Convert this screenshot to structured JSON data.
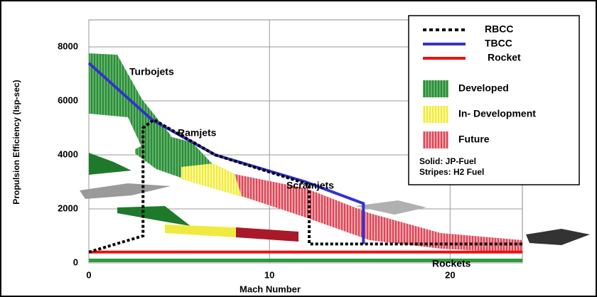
{
  "chart_data": {
    "type": "line",
    "xlabel": "Mach Number",
    "ylabel": "Propulsion Efficiency  (Isp-sec)",
    "xlim": [
      0,
      24
    ],
    "ylim": [
      0,
      9000
    ],
    "xticks": [
      0,
      10,
      20
    ],
    "yticks": [
      0,
      2000,
      4000,
      6000,
      8000
    ],
    "grid": true,
    "legend": "upper right",
    "series": [
      {
        "name": "RBCC",
        "color": "#000000",
        "dash": true,
        "x": [
          0,
          3,
          3,
          3.6,
          7,
          12.2,
          12.2,
          24
        ],
        "values": [
          400,
          1000,
          5000,
          5300,
          4000,
          2900,
          700,
          700
        ]
      },
      {
        "name": "TBCC",
        "color": "#3333cc",
        "dash": false,
        "x": [
          0,
          3.5,
          7,
          12,
          15.2,
          15.2
        ],
        "values": [
          7400,
          5300,
          4000,
          3000,
          2200,
          700
        ]
      },
      {
        "name": "Rocket",
        "color": "#ee1111",
        "dash": false,
        "x": [
          0,
          24
        ],
        "values": [
          400,
          400
        ]
      }
    ],
    "areas": [
      {
        "name": "Developed",
        "color": "#2e9a3e"
      },
      {
        "name": "In- Development",
        "color": "#f4f04a"
      },
      {
        "name": "Future",
        "color": "#e8707a"
      }
    ],
    "legend_notes": [
      "Solid: JP-Fuel",
      "Stripes: H2 Fuel"
    ],
    "annotations": [
      "Turbojets",
      "Ramjets",
      "Scramjets",
      "Rockets"
    ]
  }
}
